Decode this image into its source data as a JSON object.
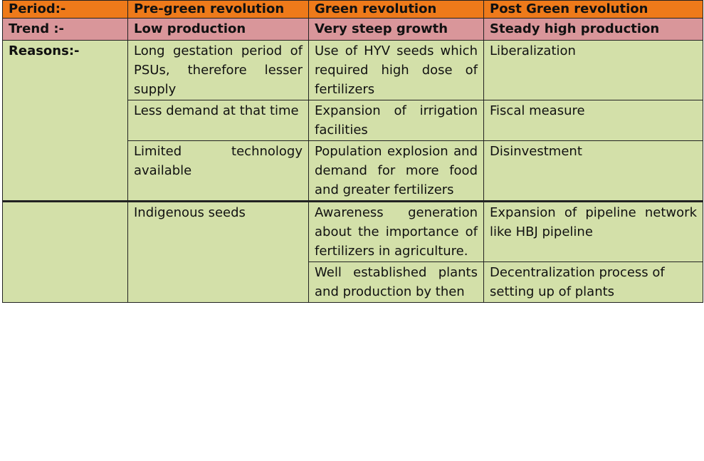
{
  "header": {
    "period": "Period:-",
    "pre": "Pre-green revolution",
    "green": "Green revolution",
    "post": "Post Green revolution"
  },
  "trend": {
    "label": "Trend :-",
    "pre": "Low production",
    "green": "Very steep growth",
    "post": "Steady high production"
  },
  "reasons": {
    "label": "Reasons:-",
    "rows": [
      {
        "pre": "Long gestation period of PSUs, therefore lesser supply",
        "green": "Use of HYV seeds which required high dose of fertilizers",
        "post": "Liberalization"
      },
      {
        "pre": "Less demand at that time",
        "green": "Expansion of irrigation facilities",
        "post": "Fiscal measure"
      },
      {
        "pre": "Limited technology available",
        "green": "Population explosion and demand for more food and greater fertilizers",
        "post": "Disinvestment"
      }
    ]
  },
  "extra": {
    "label": "",
    "pre": "Indigenous seeds",
    "rows": [
      {
        "green": "Awareness generation about the importance of fertilizers in agriculture.",
        "post": "Expansion of pipeline network like HBJ pipeline"
      },
      {
        "green": "Well established plants and production by then",
        "post": "Decentralization process of setting up of plants"
      }
    ]
  }
}
